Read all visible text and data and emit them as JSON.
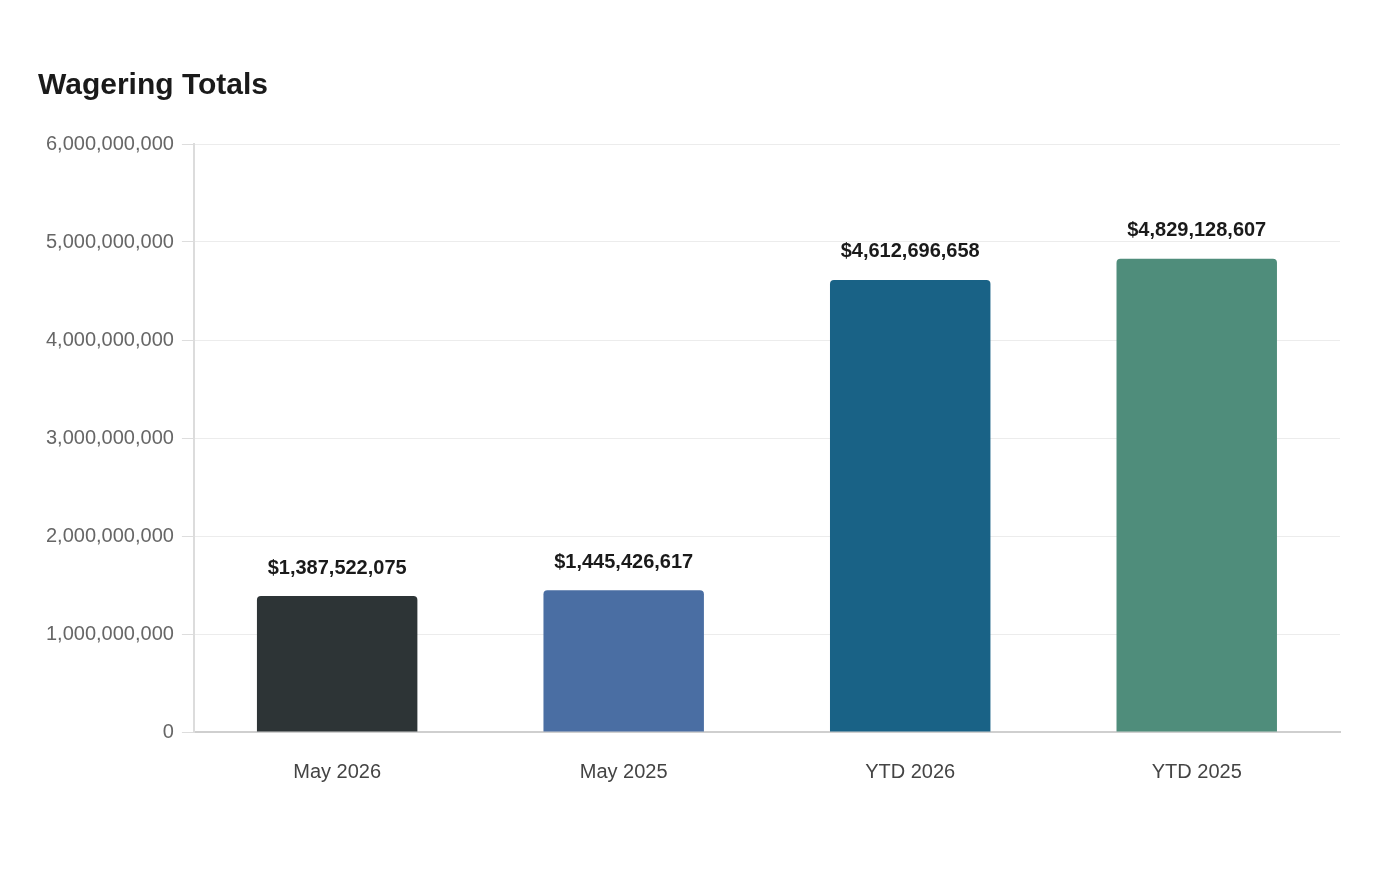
{
  "chart_data": {
    "type": "bar",
    "title": "Wagering Totals",
    "categories": [
      "May 2026",
      "May 2025",
      "YTD 2026",
      "YTD 2025"
    ],
    "values": [
      1387522075,
      1445426617,
      4612696658,
      4829128607
    ],
    "colors": [
      "#2d3436",
      "#4a6ea3",
      "#196286",
      "#4f8d7b"
    ],
    "value_labels": [
      "$1,387,522,075",
      "$1,445,426,617",
      "$4,612,696,658",
      "$4,829,128,607"
    ],
    "ylim": [
      0,
      6000000000
    ],
    "yticks": [
      0,
      {
        "value": 1000000000,
        "label": "1,000,000,000"
      },
      {
        "value": 2000000000,
        "label": "2,000,000,000"
      },
      {
        "value": 3000000000,
        "label": "3,000,000,000"
      },
      {
        "value": 4000000000,
        "label": "4,000,000,000"
      },
      {
        "value": 5000000000,
        "label": "5,000,000,000"
      },
      {
        "value": 6000000000,
        "label": "6,000,000,000"
      }
    ],
    "grid": "y",
    "legend": false
  }
}
